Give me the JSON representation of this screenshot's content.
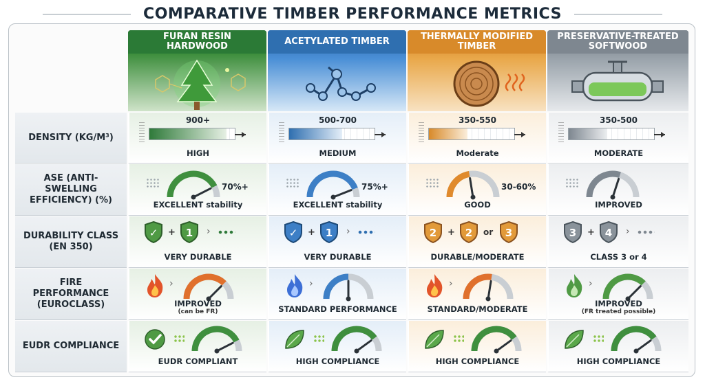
{
  "title": "COMPARATIVE TIMBER PERFORMANCE METRICS",
  "columns": [
    {
      "name": "FURAN RESIN HARDWOOD",
      "color": "#2f7a3a",
      "tint": "#e6f0e4"
    },
    {
      "name": "ACETYLATED TIMBER",
      "color": "#2f6fb0",
      "tint": "#e4eef8"
    },
    {
      "name": "THERMALLY MODIFIED TIMBER",
      "color": "#d88a2a",
      "tint": "#fbeedb"
    },
    {
      "name": "PRESERVATIVE-TREATED SOFTWOOD",
      "color": "#7e8790",
      "tint": "#eceef0"
    }
  ],
  "rows": [
    {
      "label": "DENSITY (KG/M³)"
    },
    {
      "label": "ASE (ANTI-SWELLING EFFICIENCY) (%)"
    },
    {
      "label": "DURABILITY CLASS (EN 350)"
    },
    {
      "label": "FIRE PERFORMANCE (EUROCLASS)"
    },
    {
      "label": "EUDR COMPLIANCE"
    }
  ],
  "density": [
    {
      "value": "900+",
      "level": "HIGH",
      "fill": 0.9
    },
    {
      "value": "500-700",
      "level": "MEDIUM",
      "fill": 0.62
    },
    {
      "value": "350-550",
      "level": "Moderate",
      "fill": 0.45
    },
    {
      "value": "350-500",
      "level": "MODERATE",
      "fill": 0.45
    }
  ],
  "ase": [
    {
      "value": "70%+",
      "caption": "EXCELLENT stability",
      "level": 0.85
    },
    {
      "value": "75%+",
      "caption": "EXCELLENT stability",
      "level": 0.88
    },
    {
      "value": "30-60%",
      "caption": "GOOD",
      "level": 0.45
    },
    {
      "value": "",
      "caption": "IMPROVED",
      "level": 0.6
    }
  ],
  "durability": [
    {
      "a": "✓",
      "b": "1",
      "or": "",
      "c": "",
      "caption": "VERY DURABLE"
    },
    {
      "a": "✓",
      "b": "1",
      "or": "",
      "c": "",
      "caption": "VERY DURABLE"
    },
    {
      "a": "2",
      "b": "2",
      "or": "or",
      "c": "3",
      "caption": "DURABLE/MODERATE"
    },
    {
      "a": "3",
      "b": "4",
      "or": "",
      "c": "",
      "caption": "CLASS 3 or 4"
    }
  ],
  "fire": [
    {
      "caption": "IMPROVED",
      "sub": "(can be FR)",
      "level": 0.75
    },
    {
      "caption": "STANDARD PERFORMANCE",
      "sub": "",
      "level": 0.5
    },
    {
      "caption": "STANDARD/MODERATE",
      "sub": "",
      "level": 0.55
    },
    {
      "caption": "IMPROVED",
      "sub": "(FR treated possible)",
      "level": 0.75
    }
  ],
  "eudr": [
    {
      "caption": "EUDR COMPLIANT",
      "level": 0.85
    },
    {
      "caption": "HIGH COMPLIANCE",
      "level": 0.8
    },
    {
      "caption": "HIGH COMPLIANCE",
      "level": 0.8
    },
    {
      "caption": "HIGH COMPLIANCE",
      "level": 0.8
    }
  ],
  "icons": [
    "tree-molecule-icon",
    "molecule-icon",
    "wood-ring-heat-icon",
    "treatment-tank-icon"
  ]
}
